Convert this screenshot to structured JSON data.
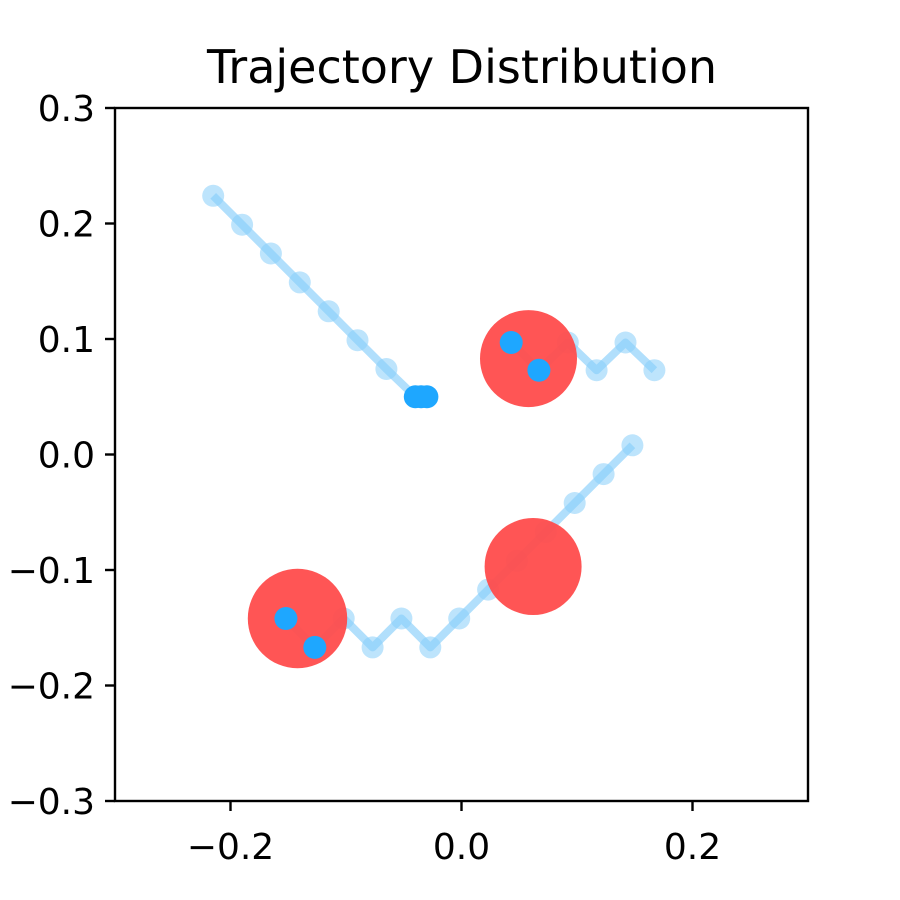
{
  "chart_data": {
    "type": "scatter",
    "title": "Trajectory Distribution",
    "xlabel": "",
    "ylabel": "",
    "xlim": [
      -0.3,
      0.3
    ],
    "ylim": [
      -0.3,
      0.3
    ],
    "xticks": [
      -0.2,
      0.0,
      0.2
    ],
    "xtick_labels": [
      "−0.2",
      "0.0",
      "0.2"
    ],
    "yticks": [
      -0.3,
      -0.2,
      -0.1,
      0.0,
      0.1,
      0.2,
      0.3
    ],
    "ytick_labels": [
      "−0.3",
      "−0.2",
      "−0.1",
      "0.0",
      "0.1",
      "0.2",
      "0.3"
    ],
    "grid": false,
    "colors": {
      "trajectory": "#87CEFA",
      "highlight": "#1EA7FF",
      "region": "#FF4C4C"
    },
    "trajectories": [
      {
        "points": [
          [
            -0.215,
            0.224
          ],
          [
            -0.19,
            0.199
          ],
          [
            -0.165,
            0.174
          ],
          [
            -0.14,
            0.149
          ],
          [
            -0.115,
            0.124
          ],
          [
            -0.09,
            0.099
          ],
          [
            -0.065,
            0.074
          ],
          [
            -0.04,
            0.05
          ],
          [
            -0.035,
            0.05
          ],
          [
            -0.03,
            0.05
          ]
        ]
      },
      {
        "points": [
          [
            0.043,
            0.097
          ],
          [
            0.067,
            0.073
          ],
          [
            0.092,
            0.097
          ],
          [
            0.117,
            0.073
          ],
          [
            0.142,
            0.097
          ],
          [
            0.167,
            0.073
          ]
        ]
      },
      {
        "points": [
          [
            -0.152,
            -0.142
          ],
          [
            -0.127,
            -0.167
          ],
          [
            -0.102,
            -0.142
          ],
          [
            -0.077,
            -0.167
          ],
          [
            -0.052,
            -0.142
          ],
          [
            -0.027,
            -0.167
          ],
          [
            -0.002,
            -0.142
          ],
          [
            0.023,
            -0.117
          ],
          [
            0.048,
            -0.092
          ],
          [
            0.073,
            -0.067
          ],
          [
            0.098,
            -0.042
          ],
          [
            0.123,
            -0.017
          ],
          [
            0.148,
            0.008
          ]
        ]
      }
    ],
    "regions": [
      {
        "center": [
          -0.142,
          -0.142
        ],
        "radius": 0.043
      },
      {
        "center": [
          0.058,
          0.083
        ],
        "radius": 0.042
      },
      {
        "center": [
          0.062,
          -0.097
        ],
        "radius": 0.042
      }
    ],
    "highlight_points": [
      [
        -0.04,
        0.05
      ],
      [
        -0.035,
        0.05
      ],
      [
        -0.03,
        0.05
      ],
      [
        0.043,
        0.097
      ],
      [
        0.067,
        0.073
      ],
      [
        -0.152,
        -0.142
      ],
      [
        -0.127,
        -0.167
      ]
    ]
  }
}
